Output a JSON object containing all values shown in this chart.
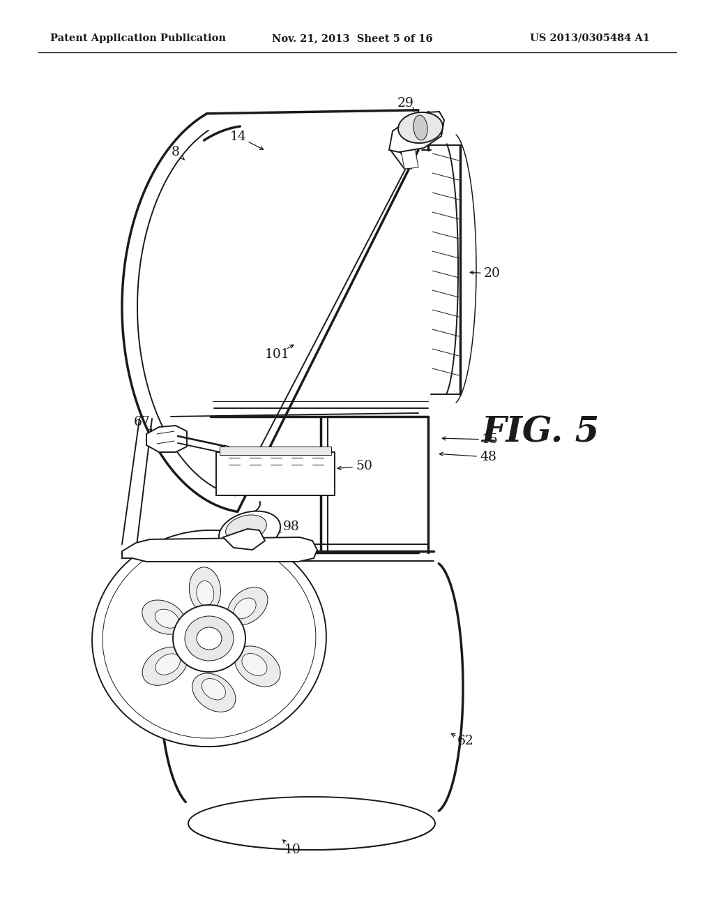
{
  "bg": "#ffffff",
  "lc": "#1a1a1a",
  "header_left": "Patent Application Publication",
  "header_mid": "Nov. 21, 2013  Sheet 5 of 16",
  "header_right": "US 2013/0305484 A1",
  "fig_label": "FIG. 5",
  "lw_main": 1.4,
  "lw_thin": 0.7,
  "lw_thick": 2.5,
  "lw_med": 1.1
}
